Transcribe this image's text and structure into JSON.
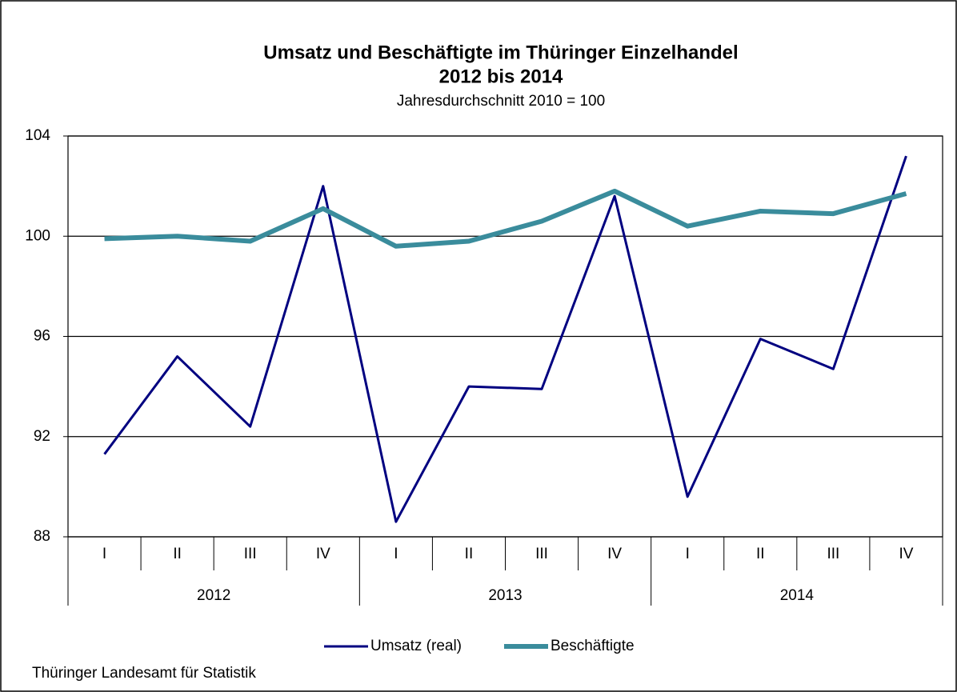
{
  "chart_data": {
    "type": "line",
    "title": [
      "Umsatz und Beschäftigte im Thüringer Einzelhandel",
      "2012 bis 2014"
    ],
    "subtitle": "Jahresdurchschnitt  2010 = 100",
    "categories": [
      "I",
      "II",
      "III",
      "IV",
      "I",
      "II",
      "III",
      "IV",
      "I",
      "II",
      "III",
      "IV"
    ],
    "groups": [
      "2012",
      "2013",
      "2014"
    ],
    "series": [
      {
        "name": "Umsatz (real)",
        "color": "#000080",
        "values": [
          91.3,
          95.2,
          92.4,
          102.0,
          88.6,
          94.0,
          93.9,
          101.6,
          89.6,
          95.9,
          94.7,
          103.2
        ]
      },
      {
        "name": "Beschäftigte",
        "color": "#3a8c9c",
        "values": [
          99.9,
          100.0,
          99.8,
          101.1,
          99.6,
          99.8,
          100.6,
          101.8,
          100.4,
          101.0,
          100.9,
          101.7
        ]
      }
    ],
    "ylim": [
      88,
      104
    ],
    "yticks": [
      88,
      92,
      96,
      100,
      104
    ],
    "grid": true,
    "legend": "bottom",
    "source": "Thüringer Landesamt für Statistik"
  }
}
